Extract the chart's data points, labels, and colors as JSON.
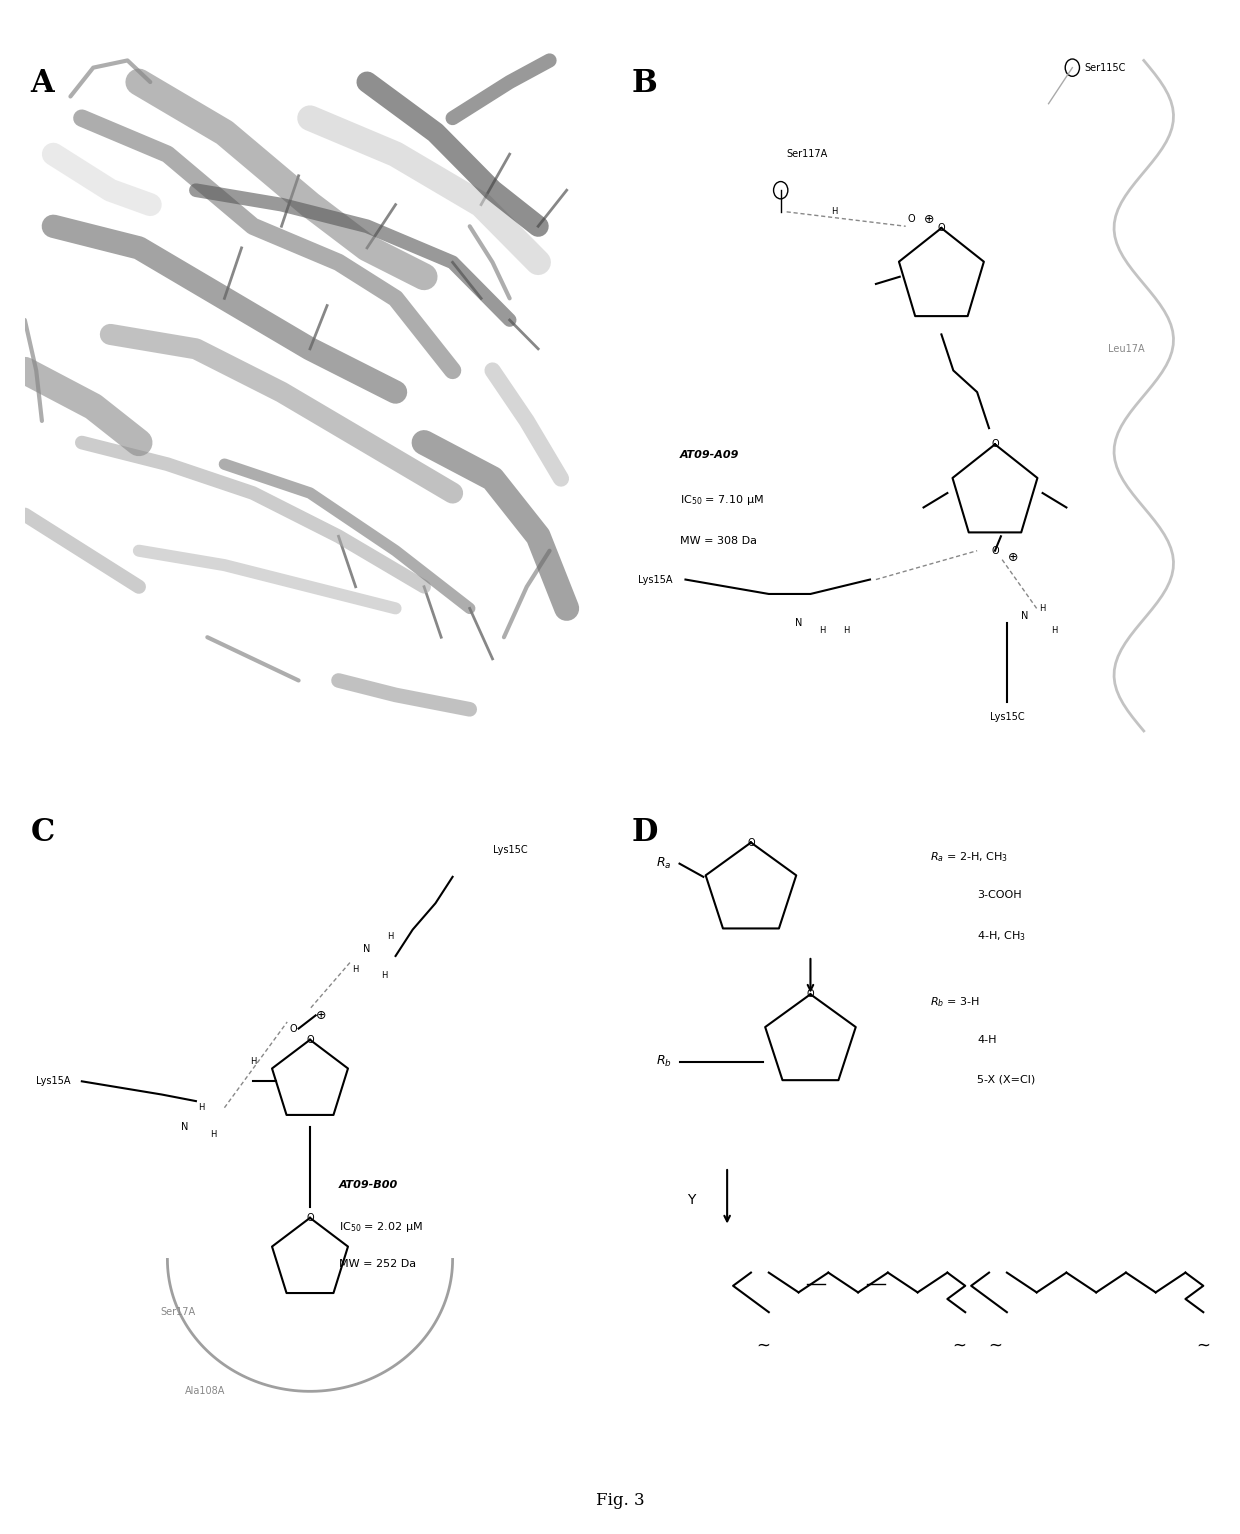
{
  "figure_label": "Fig. 3",
  "panel_labels": [
    "A",
    "B",
    "C",
    "D"
  ],
  "background_color": "#ffffff",
  "text_color": "#000000",
  "panel_label_fontsize": 22,
  "caption_fontsize": 12
}
